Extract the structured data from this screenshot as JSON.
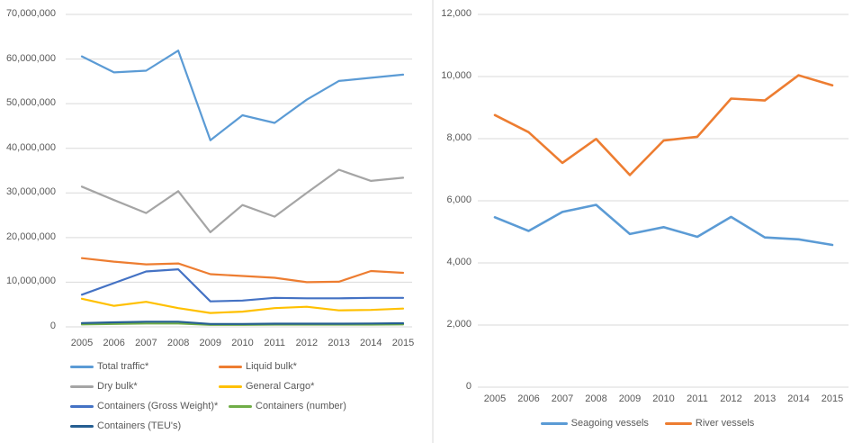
{
  "colors": {
    "background": "#FFFFFF",
    "gridline": "#D9D9D9",
    "axis_text": "#595959",
    "divider": "#D9D9D9"
  },
  "chart_data": [
    {
      "id": "cargo-traffic",
      "type": "line",
      "title": "",
      "xlabel": "",
      "ylabel": "",
      "grid": true,
      "legend_position": "bottom-left-two-columns",
      "categories": [
        "2005",
        "2006",
        "2007",
        "2008",
        "2009",
        "2010",
        "2011",
        "2012",
        "2013",
        "2014",
        "2015"
      ],
      "ylim": [
        0,
        70000000
      ],
      "ytick_step": 10000000,
      "ytick_labels": [
        "0",
        "10,000,000",
        "20,000,000",
        "30,000,000",
        "40,000,000",
        "50,000,000",
        "60,000,000",
        "70,000,000"
      ],
      "series": [
        {
          "name": "Total traffic*",
          "color": "#5B9BD5",
          "values": [
            60600000,
            57000000,
            57400000,
            61900000,
            41800000,
            47400000,
            45700000,
            50900000,
            55100000,
            55800000,
            56500000
          ]
        },
        {
          "name": "Liquid bulk*",
          "color": "#ED7D31",
          "values": [
            15400000,
            14600000,
            14000000,
            14200000,
            11800000,
            11400000,
            11000000,
            10000000,
            10100000,
            12500000,
            12100000
          ]
        },
        {
          "name": "Dry bulk*",
          "color": "#A5A5A5",
          "values": [
            31400000,
            28400000,
            25500000,
            30400000,
            21200000,
            27300000,
            24700000,
            30000000,
            35200000,
            32700000,
            33400000
          ]
        },
        {
          "name": "General Cargo*",
          "color": "#FFC000",
          "values": [
            6300000,
            4700000,
            5600000,
            4200000,
            3100000,
            3400000,
            4200000,
            4500000,
            3700000,
            3800000,
            4100000
          ]
        },
        {
          "name": "Containers (Gross Weight)*",
          "color": "#4472C4",
          "values": [
            7200000,
            9800000,
            12400000,
            12900000,
            5700000,
            5900000,
            6500000,
            6400000,
            6400000,
            6500000,
            6500000
          ]
        },
        {
          "name": "Containers (number)",
          "color": "#70AD47",
          "values": [
            550000,
            650000,
            750000,
            750000,
            450000,
            450000,
            500000,
            500000,
            500000,
            500000,
            550000
          ]
        },
        {
          "name": "Containers (TEU's)",
          "color": "#255E91",
          "values": [
            850000,
            1000000,
            1150000,
            1150000,
            650000,
            650000,
            700000,
            700000,
            700000,
            750000,
            800000
          ]
        }
      ]
    },
    {
      "id": "vessels",
      "type": "line",
      "title": "",
      "xlabel": "",
      "ylabel": "",
      "grid": true,
      "legend_position": "bottom-center",
      "categories": [
        "2005",
        "2006",
        "2007",
        "2008",
        "2009",
        "2010",
        "2011",
        "2012",
        "2013",
        "2014",
        "2015"
      ],
      "ylim": [
        0,
        12000
      ],
      "ytick_step": 2000,
      "ytick_labels": [
        "0",
        "2,000",
        "4,000",
        "6,000",
        "8,000",
        "10,000",
        "12,000"
      ],
      "series": [
        {
          "name": "Seagoing vessels",
          "color": "#5B9BD5",
          "values": [
            5470,
            5030,
            5640,
            5870,
            4930,
            5150,
            4840,
            5480,
            4820,
            4760,
            4580
          ]
        },
        {
          "name": "River vessels",
          "color": "#ED7D31",
          "values": [
            8760,
            8210,
            7220,
            7990,
            6830,
            7940,
            8060,
            9290,
            9230,
            10040,
            9720
          ]
        }
      ]
    }
  ]
}
